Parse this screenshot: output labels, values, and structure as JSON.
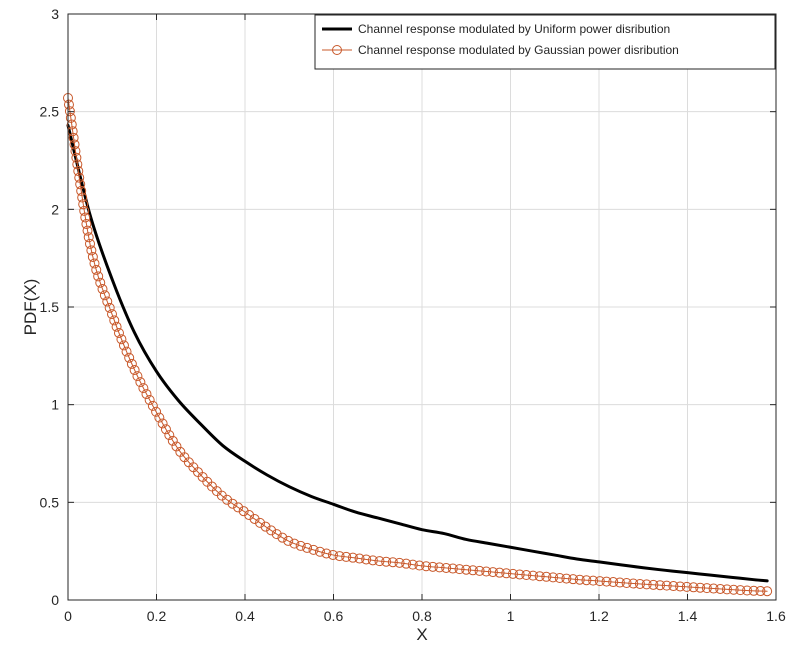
{
  "chart_data": {
    "type": "line",
    "xlabel": "X",
    "ylabel": "PDF(X)",
    "xlim": [
      0,
      1.6
    ],
    "ylim": [
      0,
      3
    ],
    "grid": true,
    "legend_position": "top-right",
    "x_ticks": [
      0,
      0.2,
      0.4,
      0.6,
      0.8,
      1,
      1.2,
      1.4,
      1.6
    ],
    "x_tick_labels": [
      "0",
      "0.2",
      "0.4",
      "0.6",
      "0.8",
      "1",
      "1.2",
      "1.4",
      "1.6"
    ],
    "y_ticks": [
      0,
      0.5,
      1,
      1.5,
      2,
      2.5,
      3
    ],
    "y_tick_labels": [
      "0",
      "0.5",
      "1",
      "1.5",
      "2",
      "2.5",
      "3"
    ],
    "series": [
      {
        "name": "Channel response modulated by Uniform power disribution",
        "color": "#000000",
        "style": "thick-line",
        "x": [
          0,
          0.05,
          0.1,
          0.15,
          0.2,
          0.25,
          0.3,
          0.35,
          0.4,
          0.45,
          0.5,
          0.55,
          0.6,
          0.65,
          0.7,
          0.75,
          0.8,
          0.85,
          0.9,
          0.95,
          1,
          1.05,
          1.1,
          1.15,
          1.2,
          1.25,
          1.3,
          1.35,
          1.4,
          1.45,
          1.5,
          1.55,
          1.58
        ],
        "y": [
          2.43,
          1.97,
          1.64,
          1.37,
          1.17,
          1.02,
          0.9,
          0.79,
          0.71,
          0.64,
          0.58,
          0.53,
          0.49,
          0.45,
          0.42,
          0.39,
          0.36,
          0.34,
          0.31,
          0.29,
          0.27,
          0.25,
          0.23,
          0.21,
          0.195,
          0.18,
          0.165,
          0.152,
          0.14,
          0.128,
          0.116,
          0.104,
          0.098
        ]
      },
      {
        "name": "Channel response modulated by Gaussian power disribution",
        "color": "#c8582a",
        "style": "line-circle-markers",
        "x": [
          0,
          0.05,
          0.1,
          0.15,
          0.2,
          0.25,
          0.3,
          0.35,
          0.4,
          0.45,
          0.5,
          0.55,
          0.6,
          0.65,
          0.7,
          0.75,
          0.8,
          0.85,
          0.9,
          0.95,
          1,
          1.05,
          1.1,
          1.15,
          1.2,
          1.25,
          1.3,
          1.35,
          1.4,
          1.45,
          1.5,
          1.55,
          1.58
        ],
        "y": [
          2.57,
          1.82,
          1.46,
          1.18,
          0.96,
          0.77,
          0.64,
          0.53,
          0.45,
          0.37,
          0.3,
          0.26,
          0.23,
          0.215,
          0.2,
          0.19,
          0.175,
          0.165,
          0.155,
          0.145,
          0.135,
          0.125,
          0.115,
          0.105,
          0.097,
          0.089,
          0.081,
          0.074,
          0.067,
          0.06,
          0.053,
          0.047,
          0.045
        ]
      }
    ]
  }
}
